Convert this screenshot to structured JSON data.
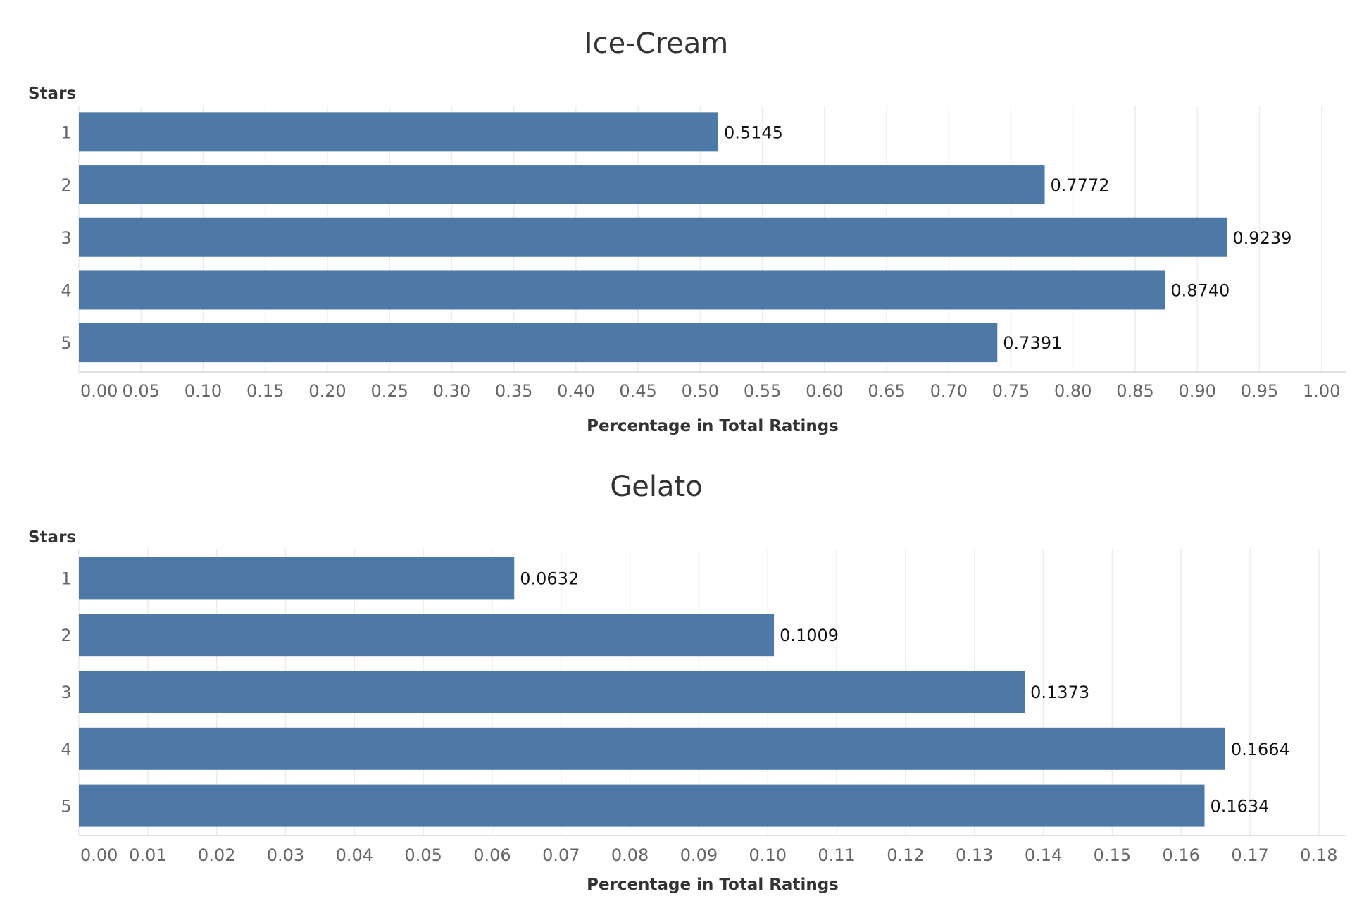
{
  "chart_data": [
    {
      "type": "bar",
      "orientation": "horizontal",
      "title": "Ice-Cream",
      "ylabel": "Stars",
      "xlabel": "Percentage in Total Ratings",
      "categories": [
        "1",
        "2",
        "3",
        "4",
        "5"
      ],
      "values": [
        0.5145,
        0.7772,
        0.9239,
        0.874,
        0.7391
      ],
      "value_labels": [
        "0.5145",
        "0.7772",
        "0.9239",
        "0.8740",
        "0.7391"
      ],
      "xlim": [
        0,
        1.02
      ],
      "xticks": [
        "0.00",
        "0.05",
        "0.10",
        "0.15",
        "0.20",
        "0.25",
        "0.30",
        "0.35",
        "0.40",
        "0.45",
        "0.50",
        "0.55",
        "0.60",
        "0.65",
        "0.70",
        "0.75",
        "0.80",
        "0.85",
        "0.90",
        "0.95",
        "1.00"
      ],
      "grid": true,
      "bar_color": "#4e79a7"
    },
    {
      "type": "bar",
      "orientation": "horizontal",
      "title": "Gelato",
      "ylabel": "Stars",
      "xlabel": "Percentage in Total Ratings",
      "categories": [
        "1",
        "2",
        "3",
        "4",
        "5"
      ],
      "values": [
        0.0632,
        0.1009,
        0.1373,
        0.1664,
        0.1634
      ],
      "value_labels": [
        "0.0632",
        "0.1009",
        "0.1373",
        "0.1664",
        "0.1634"
      ],
      "xlim": [
        0,
        0.184
      ],
      "xticks": [
        "0.00",
        "0.01",
        "0.02",
        "0.03",
        "0.04",
        "0.05",
        "0.06",
        "0.07",
        "0.08",
        "0.09",
        "0.10",
        "0.11",
        "0.12",
        "0.13",
        "0.14",
        "0.15",
        "0.16",
        "0.17",
        "0.18"
      ],
      "grid": true,
      "bar_color": "#4e79a7"
    }
  ]
}
